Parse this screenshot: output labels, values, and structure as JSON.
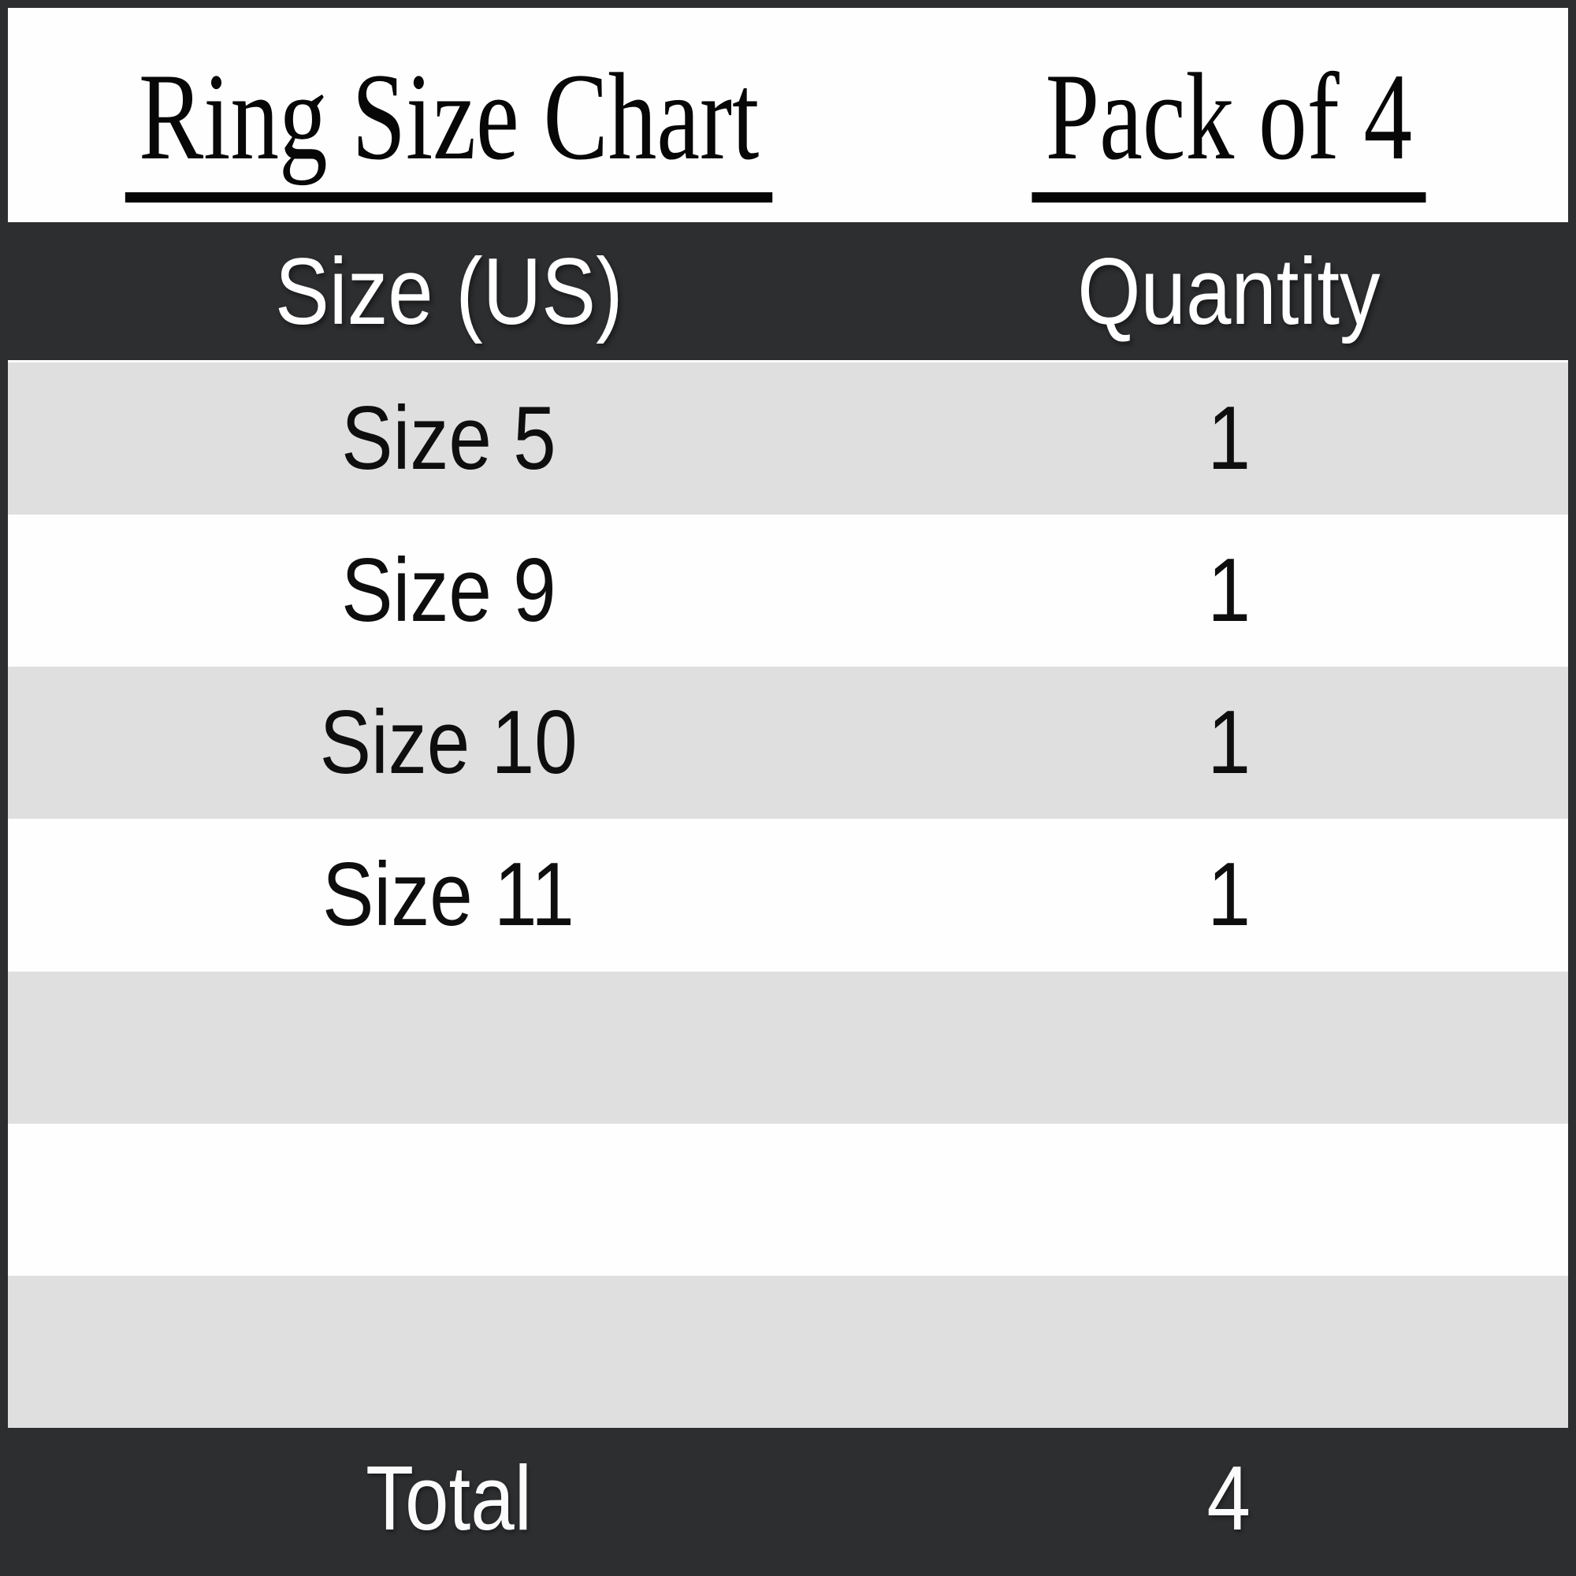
{
  "titles": {
    "left": "Ring Size Chart",
    "right": "Pack of 4"
  },
  "table": {
    "headers": [
      "Size (US)",
      "Quantity"
    ],
    "rows": [
      {
        "size": "Size 5",
        "qty": "1"
      },
      {
        "size": "Size 9",
        "qty": "1"
      },
      {
        "size": "Size 10",
        "qty": "1"
      },
      {
        "size": "Size 11",
        "qty": "1"
      },
      {
        "size": "",
        "qty": ""
      },
      {
        "size": "",
        "qty": ""
      },
      {
        "size": "",
        "qty": ""
      }
    ],
    "footer": {
      "label": "Total",
      "value": "4"
    }
  },
  "colors": {
    "dark_bar": "#2d2e30",
    "light_row": "#dfdfdf",
    "white_row": "#fefefe",
    "text_dark": "#0e0e0e",
    "text_light": "#ffffff",
    "underline": "#050505",
    "frame_border": "#2d2e30"
  },
  "chart_data": {
    "type": "table",
    "title": "Ring Size Chart",
    "subtitle": "Pack of 4",
    "columns": [
      "Size (US)",
      "Quantity"
    ],
    "rows": [
      [
        "Size 5",
        1
      ],
      [
        "Size 9",
        1
      ],
      [
        "Size 10",
        1
      ],
      [
        "Size 11",
        1
      ]
    ],
    "total": {
      "label": "Total",
      "value": 4
    },
    "layout_hints": {
      "striped_rows": true,
      "empty_trailing_rows": 3,
      "header_style": "dark-bar",
      "footer_style": "dark-bar"
    }
  }
}
